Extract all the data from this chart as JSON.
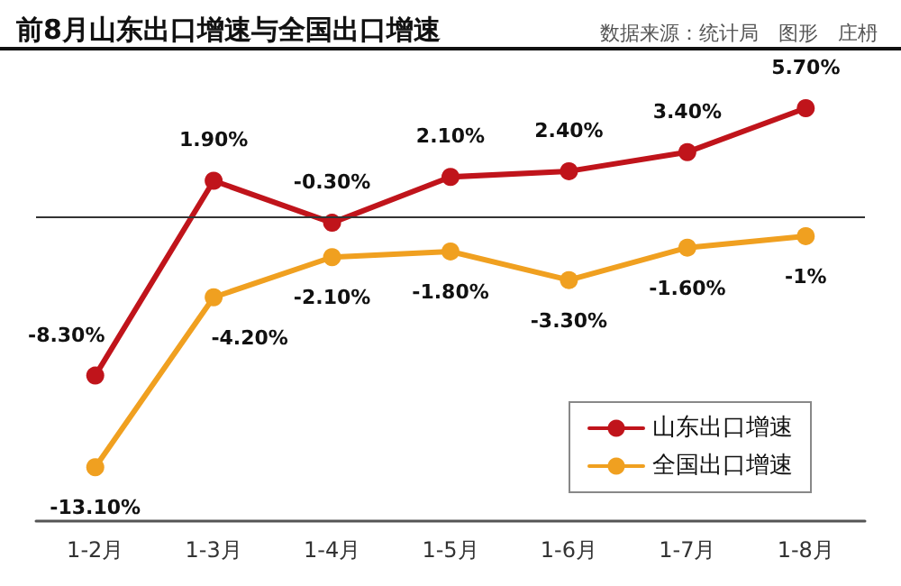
{
  "chart_data": {
    "type": "line",
    "title": "前8月山东出口增速与全国出口增速",
    "annotations": [
      "数据来源：统计局　图形　庄枬"
    ],
    "categories": [
      "1-2月",
      "1-3月",
      "1-4月",
      "1-5月",
      "1-6月",
      "1-7月",
      "1-8月"
    ],
    "series": [
      {
        "name": "山东出口增速",
        "color": "#c0141b",
        "values": [
          -8.3,
          1.9,
          -0.3,
          2.1,
          2.4,
          3.4,
          5.7
        ],
        "value_labels": [
          "-8.30%",
          "1.90%",
          "-0.30%",
          "2.10%",
          "2.40%",
          "3.40%",
          "5.70%"
        ]
      },
      {
        "name": "全国出口增速",
        "color": "#f0a020",
        "values": [
          -13.1,
          -4.2,
          -2.1,
          -1.8,
          -3.3,
          -1.6,
          -1
        ],
        "value_labels": [
          "-13.10%",
          "-4.20%",
          "-2.10%",
          "-1.80%",
          "-3.30%",
          "-1.60%",
          "-1%"
        ]
      }
    ],
    "ref_lines": [
      {
        "axis": "y",
        "value": 0,
        "color": "#333333"
      }
    ],
    "legend": "bottom right",
    "marker": "circle",
    "line_style": "solid"
  }
}
